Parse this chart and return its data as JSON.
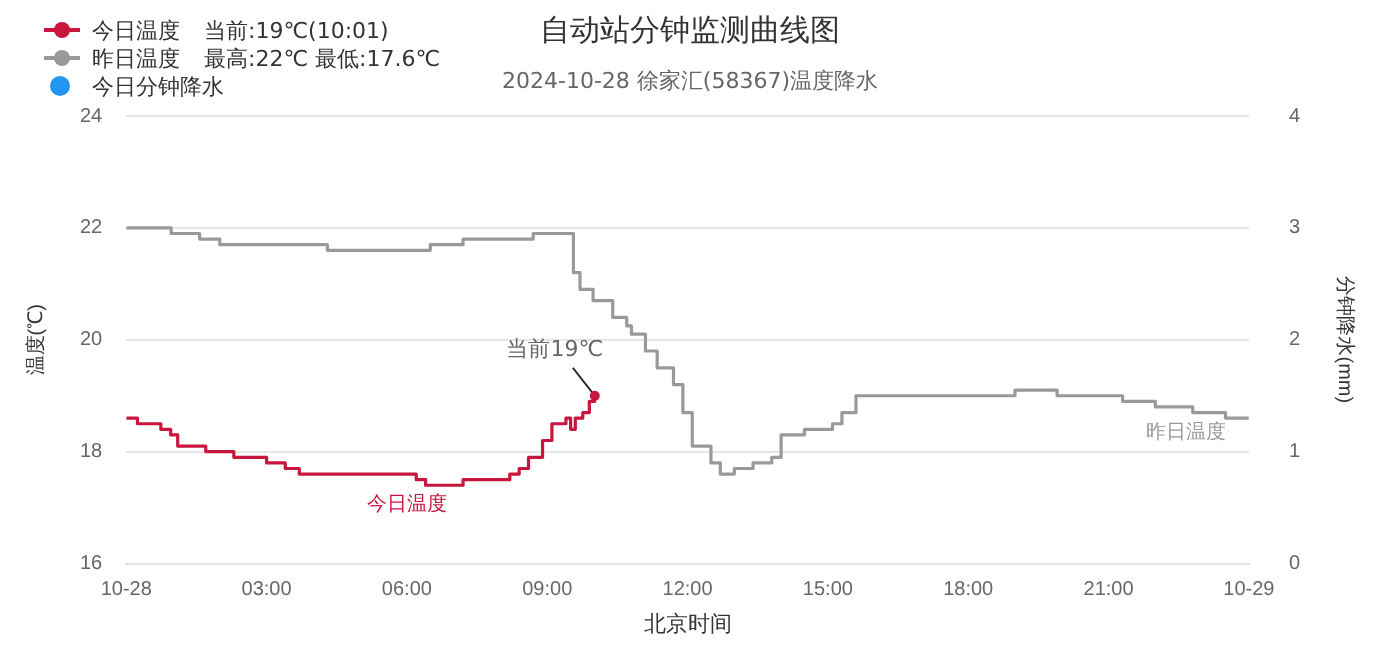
{
  "chart_data": {
    "type": "step",
    "title": "自动站分钟监测曲线图",
    "subtitle": "2024-10-28 徐家汇(58367)温度降水",
    "xlabel": "北京时间",
    "ylabel": "温度(℃)",
    "y2label": "分钟降水(mm)",
    "series": [
      {
        "name": "今日温度",
        "color": "#c8163e",
        "x": [
          0,
          0.24,
          0.74,
          0.95,
          1.1,
          1.7,
          2.3,
          3.0,
          3.4,
          3.7,
          6.2,
          6.4,
          7.2,
          8.2,
          8.4,
          8.6,
          8.9,
          9.1,
          9.4,
          9.5,
          9.6,
          9.76,
          9.9,
          10.0167
        ],
        "values": [
          18.6,
          18.5,
          18.4,
          18.3,
          18.1,
          18.0,
          17.9,
          17.8,
          17.7,
          17.6,
          17.5,
          17.4,
          17.5,
          17.6,
          17.7,
          17.9,
          18.2,
          18.5,
          18.6,
          18.4,
          18.6,
          18.7,
          18.9,
          19.0
        ]
      },
      {
        "name": "昨日温度",
        "color": "#999999",
        "x": [
          0,
          0.96,
          1.57,
          2.0,
          4.3,
          6.5,
          7.2,
          8.7,
          9.4,
          9.56,
          9.7,
          9.98,
          10.4,
          10.7,
          10.8,
          11.1,
          11.35,
          11.7,
          11.9,
          12.1,
          12.5,
          12.7,
          13.0,
          13.4,
          13.8,
          14.0,
          14.5,
          15.1,
          15.3,
          15.6,
          19.0,
          19.9,
          21.3,
          22.0,
          22.8,
          23.5,
          24
        ],
        "values": [
          22.0,
          21.9,
          21.8,
          21.7,
          21.6,
          21.7,
          21.8,
          21.9,
          21.9,
          21.2,
          20.9,
          20.7,
          20.4,
          20.25,
          20.1,
          19.8,
          19.5,
          19.2,
          18.7,
          18.1,
          17.8,
          17.6,
          17.7,
          17.8,
          17.9,
          18.3,
          18.4,
          18.5,
          18.7,
          19.0,
          19.1,
          19.0,
          18.9,
          18.8,
          18.7,
          18.6,
          18.6
        ]
      },
      {
        "name": "今日分钟降水",
        "color": "#2196f3",
        "type": "bar"
      }
    ],
    "xlim": [
      0,
      24
    ],
    "xticks": [
      {
        "value": 0,
        "label": "10-28"
      },
      {
        "value": 3,
        "label": "03:00"
      },
      {
        "value": 6,
        "label": "06:00"
      },
      {
        "value": 9,
        "label": "09:00"
      },
      {
        "value": 12,
        "label": "12:00"
      },
      {
        "value": 15,
        "label": "15:00"
      },
      {
        "value": 18,
        "label": "18:00"
      },
      {
        "value": 21,
        "label": "21:00"
      },
      {
        "value": 24,
        "label": "10-29"
      }
    ],
    "ylim": [
      16,
      24
    ],
    "yticks": [
      16,
      18,
      20,
      22,
      24
    ],
    "y2lim": [
      0,
      4
    ],
    "y2ticks": [
      0,
      1,
      2,
      3,
      4
    ],
    "grid": "y",
    "legend": "top left",
    "annotations": [
      "当前:19℃(10:01)",
      "最高:22℃ 最低:17.6℃",
      {
        "text": "当前19℃",
        "x": 10.0167,
        "y": 19.0
      },
      "今日温度",
      "昨日温度"
    ]
  }
}
